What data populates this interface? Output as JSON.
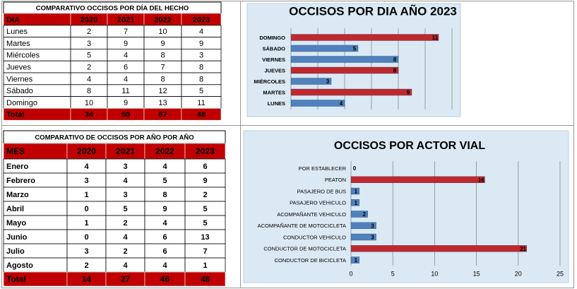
{
  "tables": [
    {
      "title": "COMPARATIVO OCCISOS POR DÍA DEL HECHO",
      "header": [
        "DIA",
        "2020",
        "2021",
        "2022",
        "2023"
      ],
      "rows": [
        [
          "Lunes",
          2,
          7,
          10,
          4
        ],
        [
          "Martes",
          3,
          9,
          9,
          9
        ],
        [
          "Miércoles",
          5,
          4,
          8,
          3
        ],
        [
          "Jueves",
          2,
          6,
          7,
          8
        ],
        [
          "Viernes",
          4,
          4,
          8,
          8
        ],
        [
          "Sábado",
          8,
          11,
          12,
          5
        ],
        [
          "Domingo",
          10,
          9,
          13,
          11
        ]
      ],
      "total": [
        "Total",
        34,
        50,
        67,
        48
      ]
    },
    {
      "title": "COMPARATIVO  DE OCCISOS POR AÑO POR AÑO",
      "header": [
        "MES",
        "2020",
        "2021",
        "2022",
        "2023"
      ],
      "rows": [
        [
          "Enero",
          4,
          3,
          4,
          6
        ],
        [
          "Febrero",
          3,
          4,
          5,
          9
        ],
        [
          "Marzo",
          1,
          3,
          8,
          2
        ],
        [
          "Abril",
          0,
          5,
          9,
          5
        ],
        [
          "Mayo",
          1,
          2,
          4,
          5
        ],
        [
          "Junio",
          0,
          4,
          6,
          13
        ],
        [
          "Julio",
          3,
          2,
          6,
          7
        ],
        [
          "Agosto",
          2,
          4,
          4,
          1
        ]
      ],
      "total": [
        "Total",
        14,
        27,
        46,
        48
      ]
    }
  ],
  "chart_data": [
    {
      "type": "hbar",
      "title": "OCCISOS POR DIA AÑO 2023",
      "categories": [
        "DOMINGO",
        "SÁBADO",
        "VIERNES",
        "JUEVES",
        "MIÉRCOLES",
        "MARTES",
        "LUNES"
      ],
      "values": [
        11,
        5,
        8,
        8,
        3,
        9,
        4
      ],
      "colors": [
        "#c0282d",
        "#4f81bd",
        "#4f81bd",
        "#c0282d",
        "#4f81bd",
        "#c0282d",
        "#4f81bd"
      ],
      "xlim": [
        0,
        12
      ],
      "xticks": [
        0,
        2,
        4,
        6,
        8,
        10,
        12
      ],
      "show_tick_labels": false,
      "grid": true
    },
    {
      "type": "hbar",
      "title": "OCCISOS POR ACTOR VIAL",
      "categories": [
        "POR ESTABLECER",
        "PEATON",
        "PASAJERO DE BUS",
        "PASAJERO VEHICULO",
        "ACOMPAÑANTE VEHICULO",
        "ACOMPAÑANTE DE MOTOCICLETA",
        "CONDUCTOR VEHICULO",
        "CONDUCTOR DE MOTOCICLETA",
        "CONDUCTOR DE BICICLETA"
      ],
      "values": [
        0,
        16,
        1,
        1,
        2,
        3,
        3,
        21,
        1
      ],
      "colors": [
        "#4f81bd",
        "#c0282d",
        "#4f81bd",
        "#4f81bd",
        "#4f81bd",
        "#4f81bd",
        "#4f81bd",
        "#c0282d",
        "#4f81bd"
      ],
      "xlim": [
        0,
        25
      ],
      "xticks": [
        0,
        5,
        10,
        15,
        20,
        25
      ],
      "show_tick_labels": true,
      "grid": true
    }
  ]
}
